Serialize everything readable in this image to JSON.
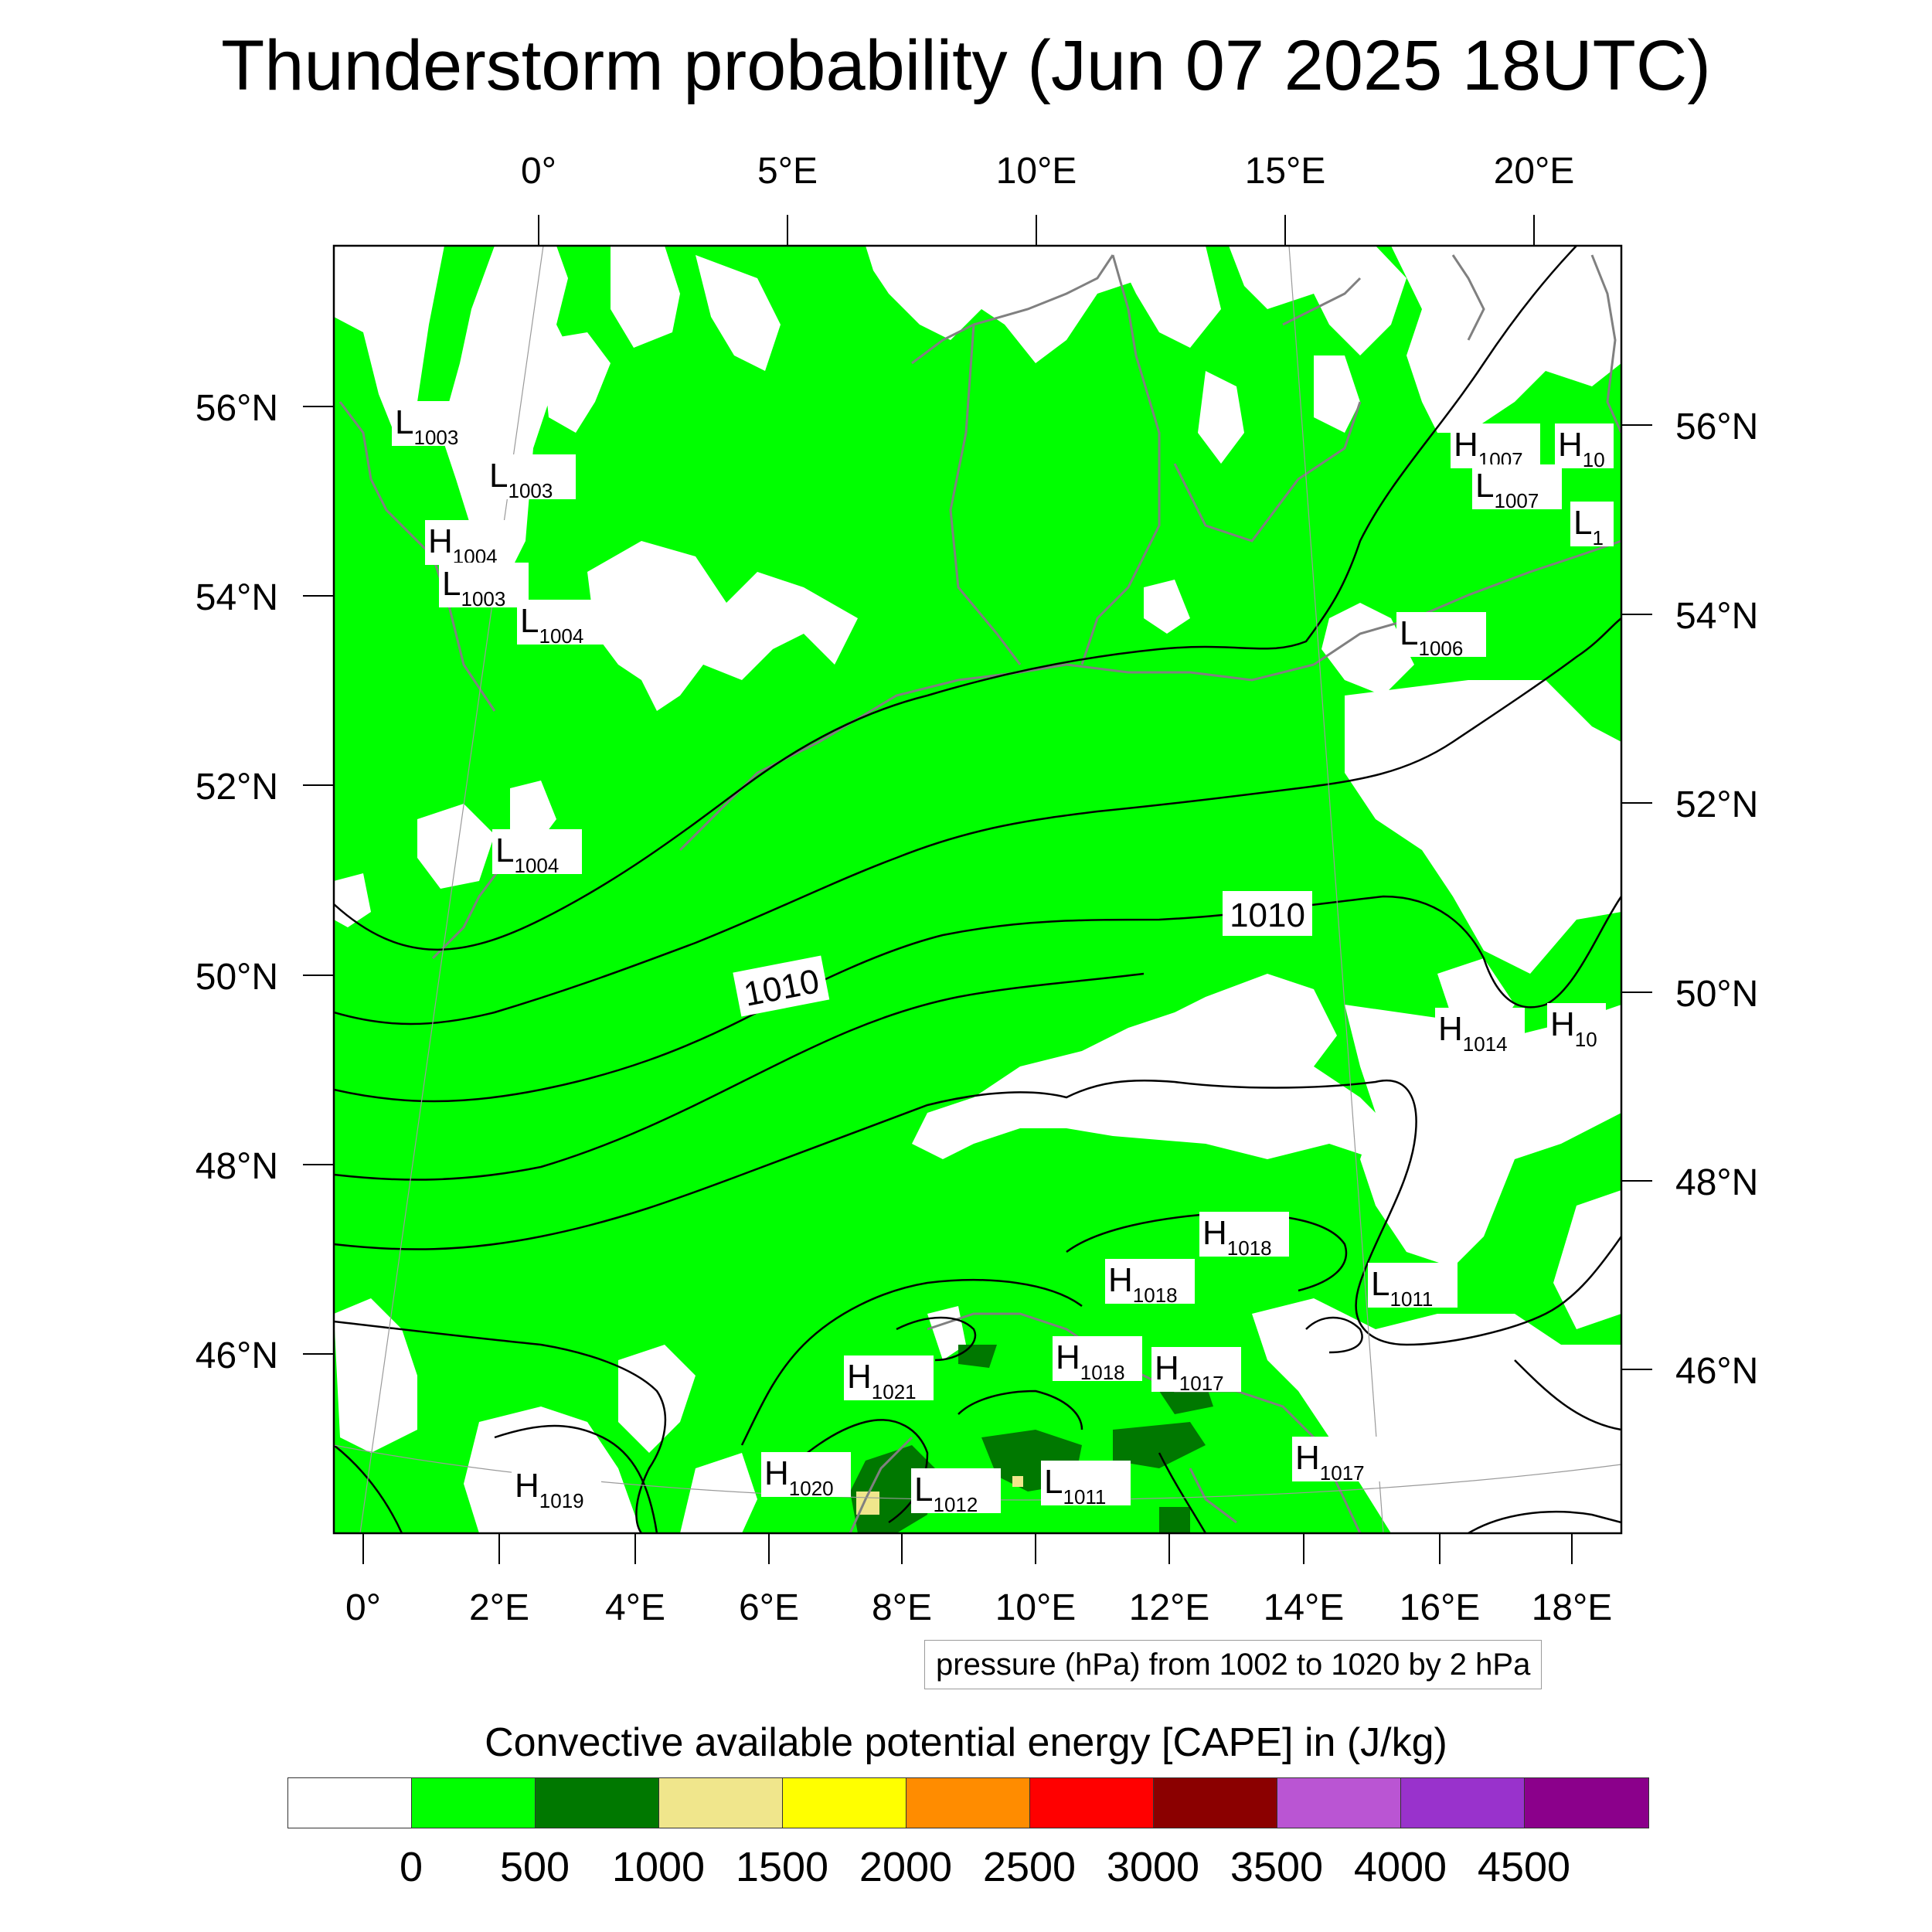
{
  "title": "Thunderstorm probability (Jun 07 2025 18UTC)",
  "map": {
    "top_lon_labels": [
      "0°",
      "5°E",
      "10°E",
      "15°E",
      "20°E"
    ],
    "bottom_lon_labels": [
      "0°",
      "2°E",
      "4°E",
      "6°E",
      "8°E",
      "10°E",
      "12°E",
      "14°E",
      "16°E",
      "18°E"
    ],
    "left_lat_labels": [
      "56°N",
      "54°N",
      "52°N",
      "50°N",
      "48°N",
      "46°N"
    ],
    "right_lat_labels": [
      "56°N",
      "54°N",
      "52°N",
      "50°N",
      "48°N",
      "46°N"
    ],
    "contour_labels": [
      "1010",
      "1010"
    ],
    "pressure_centers": [
      {
        "type": "L",
        "value": "1003"
      },
      {
        "type": "L",
        "value": "1003"
      },
      {
        "type": "H",
        "value": "1004"
      },
      {
        "type": "L",
        "value": "1003"
      },
      {
        "type": "L",
        "value": "1004"
      },
      {
        "type": "L",
        "value": "1004"
      },
      {
        "type": "H",
        "value": "1007"
      },
      {
        "type": "H",
        "value": "10"
      },
      {
        "type": "L",
        "value": "1007"
      },
      {
        "type": "L",
        "value": "1"
      },
      {
        "type": "L",
        "value": "1006"
      },
      {
        "type": "H",
        "value": "1014"
      },
      {
        "type": "H",
        "value": "10"
      },
      {
        "type": "H",
        "value": "1018"
      },
      {
        "type": "H",
        "value": "1018"
      },
      {
        "type": "L",
        "value": "1011"
      },
      {
        "type": "H",
        "value": "1021"
      },
      {
        "type": "H",
        "value": "1018"
      },
      {
        "type": "H",
        "value": "1017"
      },
      {
        "type": "H",
        "value": "1020"
      },
      {
        "type": "L",
        "value": "1012"
      },
      {
        "type": "L",
        "value": "1011"
      },
      {
        "type": "H",
        "value": "1017"
      },
      {
        "type": "H",
        "value": "1019"
      }
    ],
    "colors": {
      "no_cape": "#ffffff",
      "low_cape": "#00ff00",
      "mid_cape": "#007800",
      "high_cape": "#f0e68c",
      "isobar": "#000000",
      "coast": "#808080"
    }
  },
  "pressure_note": "pressure (hPa) from 1002 to 1020 by 2 hPa",
  "colorbar": {
    "title": "Convective available potential energy [CAPE] in (J/kg)",
    "colors": [
      "#ffffff",
      "#00ff00",
      "#007800",
      "#f0e68c",
      "#ffff00",
      "#ff8c00",
      "#ff0000",
      "#8b0000",
      "#ba55d3",
      "#9932cc",
      "#8b008b"
    ],
    "labels": [
      "0",
      "500",
      "1000",
      "1500",
      "2000",
      "2500",
      "3000",
      "3500",
      "4000",
      "4500"
    ]
  }
}
